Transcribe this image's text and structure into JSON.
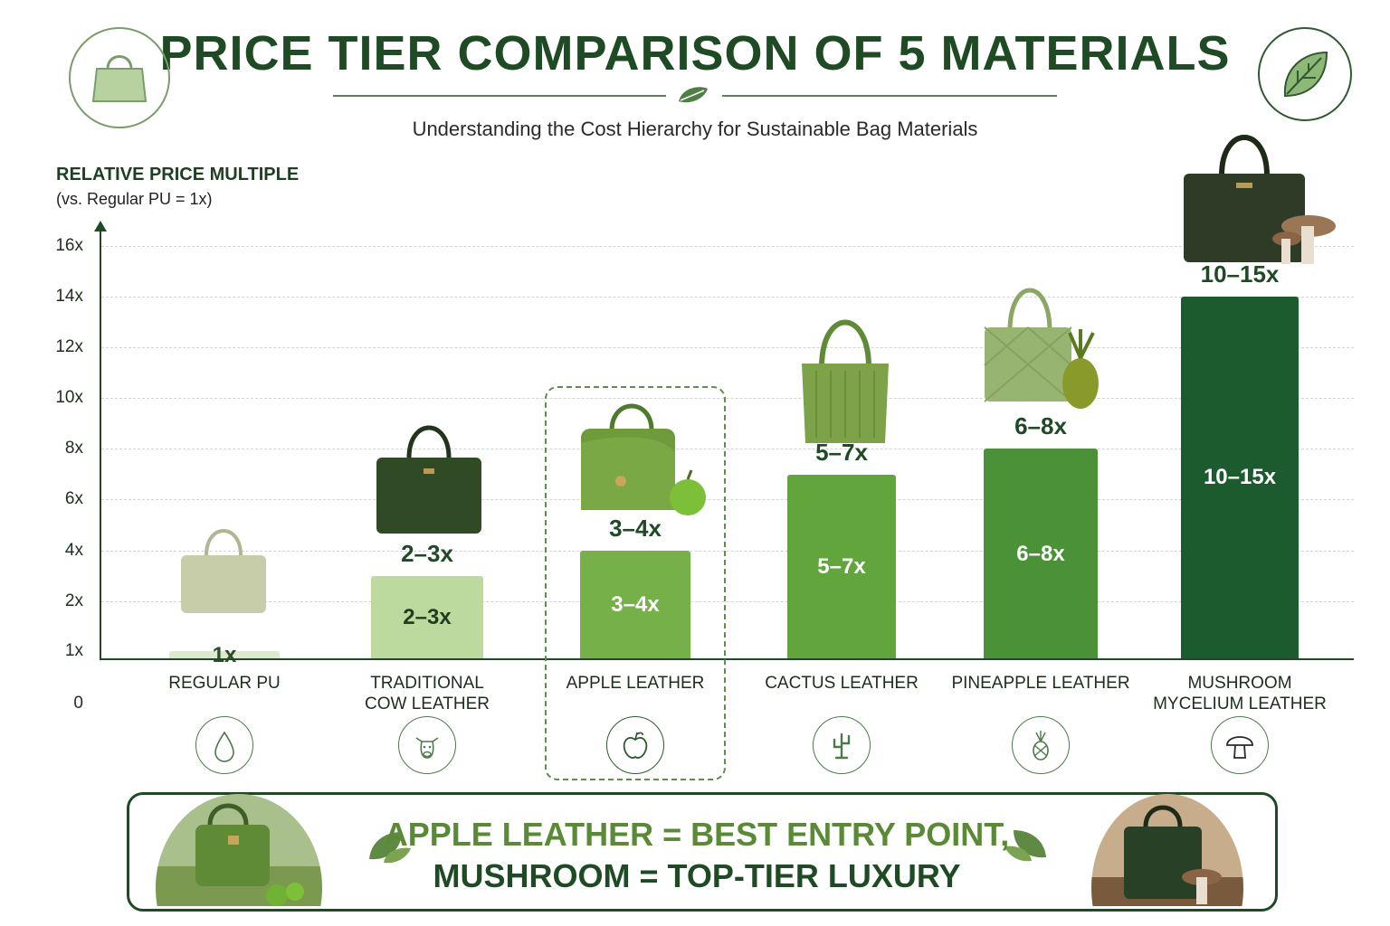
{
  "header": {
    "title": "PRICE TIER COMPARISON OF 5 MATERIALS",
    "subtitle": "Understanding the Cost Hierarchy for Sustainable Bag Materials"
  },
  "icons": {
    "top_left": "handbag-icon",
    "top_right": "leaf-icon"
  },
  "chart_data": {
    "type": "bar",
    "ylabel": "RELATIVE PRICE MULTIPLE",
    "ylabel_note": "(vs. Regular PU = 1x)",
    "ytick_labels": [
      "0",
      "1x",
      "2x",
      "4x",
      "6x",
      "8x",
      "10x",
      "12x",
      "14x",
      "16x"
    ],
    "ylim": [
      0,
      16
    ],
    "grid": true,
    "categories": [
      "REGULAR PU",
      "TRADITIONAL COW LEATHER",
      "APPLE LEATHER",
      "CACTUS LEATHER",
      "PINEAPPLE LEATHER",
      "MUSHROOM MYCELIUM LEATHER"
    ],
    "category_lines": [
      [
        "REGULAR PU"
      ],
      [
        "TRADITIONAL",
        "COW LEATHER"
      ],
      [
        "APPLE LEATHER"
      ],
      [
        "CACTUS LEATHER"
      ],
      [
        "PINEAPPLE LEATHER"
      ],
      [
        "MUSHROOM",
        "MYCELIUM LEATHER"
      ]
    ],
    "values": [
      1,
      3,
      4,
      7,
      8,
      14
    ],
    "ranges": [
      "1x",
      "2–3x",
      "3–4x",
      "5–7x",
      "6–8x",
      "10–15x"
    ],
    "highlight": "APPLE LEATHER",
    "category_icons": [
      "droplet-icon",
      "cow-icon",
      "apple-icon",
      "cactus-icon",
      "pineapple-icon",
      "mushroom-icon"
    ],
    "bar_colors": [
      "#dde9cf",
      "#bcd99e",
      "#75b049",
      "#63a53d",
      "#4b9137",
      "#1c5b2e"
    ],
    "label_colors": [
      "#2d4a2a",
      "#1f3d22",
      "#ffffff",
      "#ffffff",
      "#ffffff",
      "#ffffff"
    ]
  },
  "banner": {
    "line1": "APPLE LEATHER = BEST ENTRY POINT,",
    "line2": "MUSHROOM = TOP-TIER LUXURY",
    "line1_color": "#5a8a35",
    "line2_color": "#1e4a24"
  }
}
